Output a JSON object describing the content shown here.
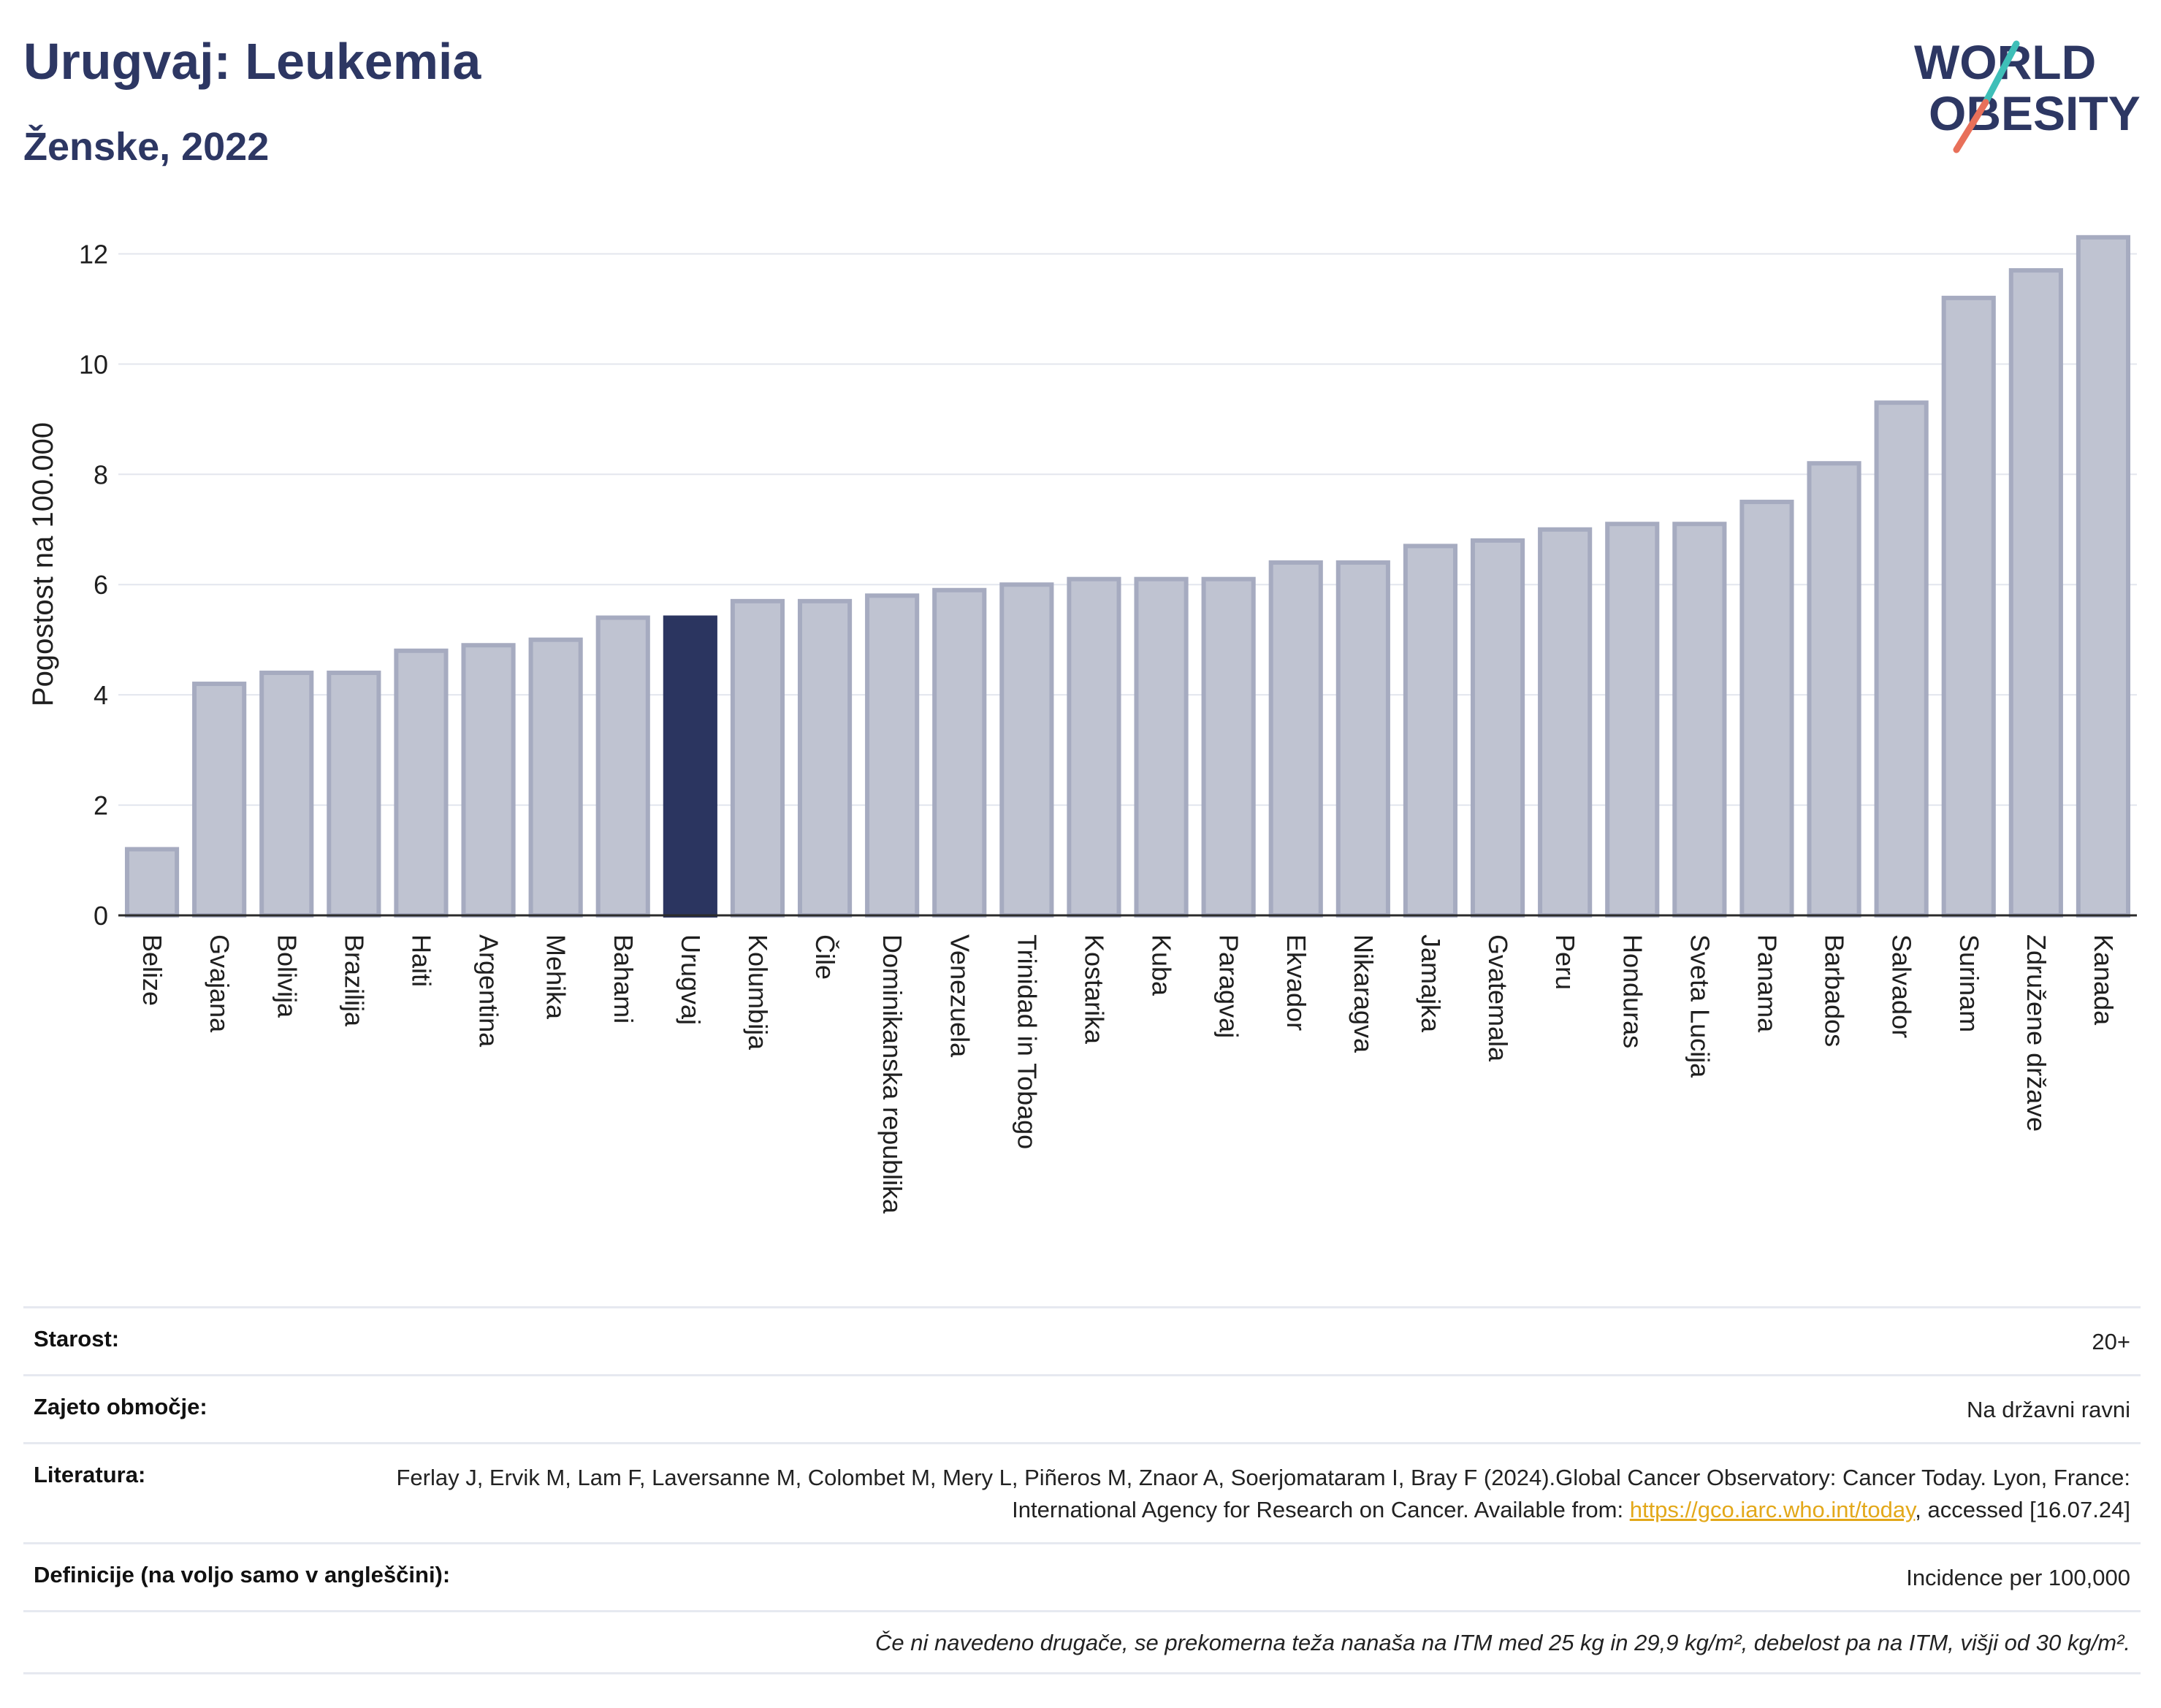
{
  "header": {
    "title": "Urugvaj: Leukemia",
    "subtitle": "Ženske, 2022",
    "logo_line1": "WORLD",
    "logo_line2": "OBESITY"
  },
  "colors": {
    "highlight": "#2b3560",
    "bar_fill": "#bfc3d1",
    "bar_stroke": "#a6abc0",
    "title": "#2d3763",
    "link": "#e3a81a",
    "logo_teal": "#3fbfb8",
    "logo_coral": "#e8705a"
  },
  "chart_data": {
    "type": "bar",
    "ylabel": "Pogostost na 100.000",
    "ylim": [
      0,
      13
    ],
    "yticks": [
      0,
      2,
      4,
      6,
      8,
      10,
      12
    ],
    "grid": true,
    "highlight": "Urugvaj",
    "categories": [
      "Belize",
      "Gvajana",
      "Bolivija",
      "Brazilija",
      "Haiti",
      "Argentina",
      "Mehika",
      "Bahami",
      "Urugvaj",
      "Kolumbija",
      "Čile",
      "Dominikanska republika",
      "Venezuela",
      "Trinidad in Tobago",
      "Kostarika",
      "Kuba",
      "Paragvaj",
      "Ekvador",
      "Nikaragva",
      "Jamajka",
      "Gvatemala",
      "Peru",
      "Honduras",
      "Sveta Lucija",
      "Panama",
      "Barbados",
      "Salvador",
      "Surinam",
      "Združene države",
      "Kanada"
    ],
    "values": [
      1.2,
      4.2,
      4.4,
      4.4,
      4.8,
      4.9,
      5.0,
      5.4,
      5.4,
      5.7,
      5.7,
      5.8,
      5.9,
      6.0,
      6.1,
      6.1,
      6.1,
      6.4,
      6.4,
      6.7,
      6.8,
      7.0,
      7.1,
      7.1,
      7.5,
      8.2,
      9.3,
      11.2,
      11.7,
      12.3
    ]
  },
  "meta": {
    "age_label": "Starost:",
    "age_value": "20+",
    "coverage_label": "Zajeto območje:",
    "coverage_value": "Na državni ravni",
    "reference_label": "Literatura:",
    "reference_text": "Ferlay J, Ervik M, Lam F, Laversanne M, Colombet M, Mery L, Piñeros M, Znaor A, Soerjomataram I, Bray F (2024).Global Cancer Observatory: Cancer Today. Lyon, France: International Agency for Research on Cancer. Available from:",
    "reference_link": "https://gco.iarc.who.int/today",
    "reference_tail": ", accessed [16.07.24]",
    "definitions_label": "Definicije (na voljo samo v angleščini):",
    "definitions_value": "Incidence per 100,000",
    "note": "Če ni navedeno drugače, se prekomerna teža nanaša na ITM med 25 kg in 29,9 kg/m², debelost pa na ITM, višji od 30 kg/m²."
  }
}
